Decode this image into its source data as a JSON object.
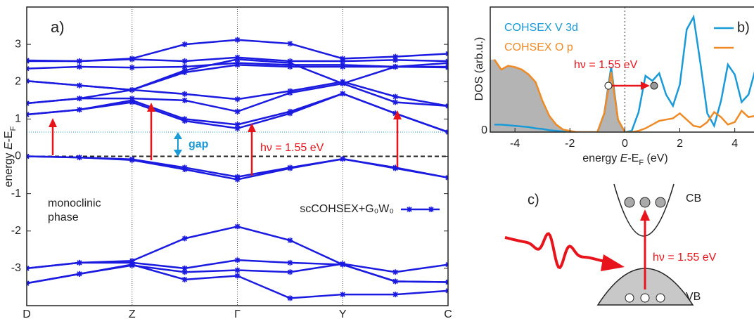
{
  "chart_data": [
    {
      "type": "line",
      "title": "a)",
      "ylabel_parts": [
        "energy ",
        "E",
        "-E",
        "F"
      ],
      "categories": [
        "D",
        null,
        "Z",
        null,
        "Γ",
        null,
        "Y",
        null,
        "C"
      ],
      "ylim": [
        -4,
        4
      ],
      "yticks": [
        -3,
        -2,
        -1,
        0,
        1,
        2,
        3
      ],
      "gap_level": 0.65,
      "annotations": {
        "phase": [
          "monoclinic",
          "phase"
        ],
        "gap": "gap",
        "photon": "hν = 1.55 eV"
      },
      "series": [
        {
          "name": "scCOHSEX+G₀W₀",
          "color": "#1a1ae0",
          "bands": [
            [
              2.57,
              2.55,
              2.62,
              3.0,
              3.12,
              3.02,
              2.62,
              2.67,
              2.75
            ],
            [
              2.55,
              2.55,
              2.6,
              2.55,
              2.65,
              2.55,
              2.55,
              2.58,
              2.55
            ],
            [
              2.35,
              2.4,
              2.38,
              2.4,
              2.5,
              2.45,
              2.45,
              2.4,
              2.38
            ],
            [
              2.02,
              1.9,
              1.78,
              2.25,
              2.45,
              2.4,
              2.4,
              2.4,
              2.4
            ],
            [
              2.02,
              1.9,
              1.78,
              1.67,
              1.53,
              1.75,
              2.0,
              1.6,
              1.35
            ],
            [
              1.42,
              1.55,
              1.78,
              2.3,
              2.6,
              2.5,
              1.95,
              2.4,
              2.5
            ],
            [
              1.42,
              1.55,
              1.55,
              1.5,
              1.2,
              1.7,
              1.95,
              1.45,
              1.35
            ],
            [
              1.12,
              1.25,
              1.5,
              1.0,
              0.85,
              1.2,
              1.68,
              1.15,
              0.65
            ],
            [
              1.12,
              1.25,
              1.45,
              0.95,
              0.75,
              1.15,
              1.68,
              1.15,
              0.65
            ],
            [
              0,
              -0.03,
              -0.08,
              -0.3,
              -0.55,
              -0.3,
              -0.07,
              -0.3,
              -0.57
            ],
            [
              0,
              -0.03,
              -0.1,
              -0.35,
              -0.62,
              -0.32,
              -0.07,
              -0.32,
              -0.57
            ],
            [
              -3.0,
              -2.85,
              -2.8,
              -2.2,
              -1.88,
              -2.25,
              -2.9,
              -3.35,
              -3.37
            ],
            [
              -3.0,
              -2.85,
              -2.85,
              -3.0,
              -2.78,
              -2.85,
              -2.9,
              -3.35,
              -3.37
            ],
            [
              -3.4,
              -3.15,
              -2.92,
              -3.1,
              -3.05,
              -3.1,
              -2.88,
              -3.1,
              -2.9
            ],
            [
              -3.4,
              -3.15,
              -2.9,
              -3.3,
              -3.2,
              -3.8,
              -3.7,
              -3.7,
              -3.6
            ]
          ]
        }
      ]
    },
    {
      "type": "line",
      "title": "b)",
      "ylabel": "DOS (arb.u.)",
      "xlabel_parts": [
        "energy ",
        "E",
        "-E",
        "F",
        " (eV)"
      ],
      "xlim": [
        -4.9,
        4.7
      ],
      "xticks": [
        -4,
        -2,
        0,
        2,
        4
      ],
      "ylim": [
        0,
        10
      ],
      "yticks": [
        0
      ],
      "annotation": "hν = 1.55 eV",
      "x": [
        -4.75,
        -4.5,
        -4.25,
        -4,
        -3.75,
        -3.5,
        -3.25,
        -3,
        -2.75,
        -2.5,
        -2.25,
        -2,
        -1.75,
        -1.5,
        -1.25,
        -1,
        -0.75,
        -0.5,
        -0.25,
        0,
        0.25,
        0.5,
        0.75,
        1,
        1.25,
        1.5,
        1.75,
        2,
        2.25,
        2.5,
        2.75,
        3,
        3.25,
        3.5,
        3.75,
        4,
        4.25,
        4.5,
        4.75
      ],
      "series": [
        {
          "name": "COHSEX V 3d",
          "color": "#1a9ad6",
          "values": [
            0.6,
            0.6,
            0.55,
            0.5,
            0.45,
            0.4,
            0.3,
            0.25,
            0.15,
            0.1,
            0.05,
            0,
            0,
            0,
            0,
            0,
            1.5,
            5.2,
            1.0,
            0,
            0.1,
            1.6,
            4.5,
            4.1,
            4.7,
            3.0,
            2.1,
            3.8,
            8.2,
            9.2,
            5.5,
            1.5,
            0.5,
            2.5,
            5.4,
            4.6,
            2.4,
            3.0,
            5.0
          ]
        },
        {
          "name": "COHSEX O p",
          "color": "#f08a24",
          "values": [
            5.8,
            5.0,
            5.3,
            5.2,
            5.0,
            4.6,
            4.0,
            2.5,
            1.3,
            0.6,
            0.2,
            0.1,
            0,
            0,
            0,
            0,
            1.5,
            4.8,
            1.0,
            0,
            0,
            0.1,
            0.3,
            0.6,
            0.9,
            1.0,
            1.1,
            1.5,
            1.0,
            0.5,
            0.4,
            0.8,
            1.6,
            1.2,
            0.6,
            0.8,
            1.7,
            1.2,
            1.3
          ]
        }
      ]
    }
  ],
  "panel_c": {
    "label": "c)",
    "cb": "CB",
    "vb": "VB",
    "photon": "hν = 1.55 eV"
  }
}
